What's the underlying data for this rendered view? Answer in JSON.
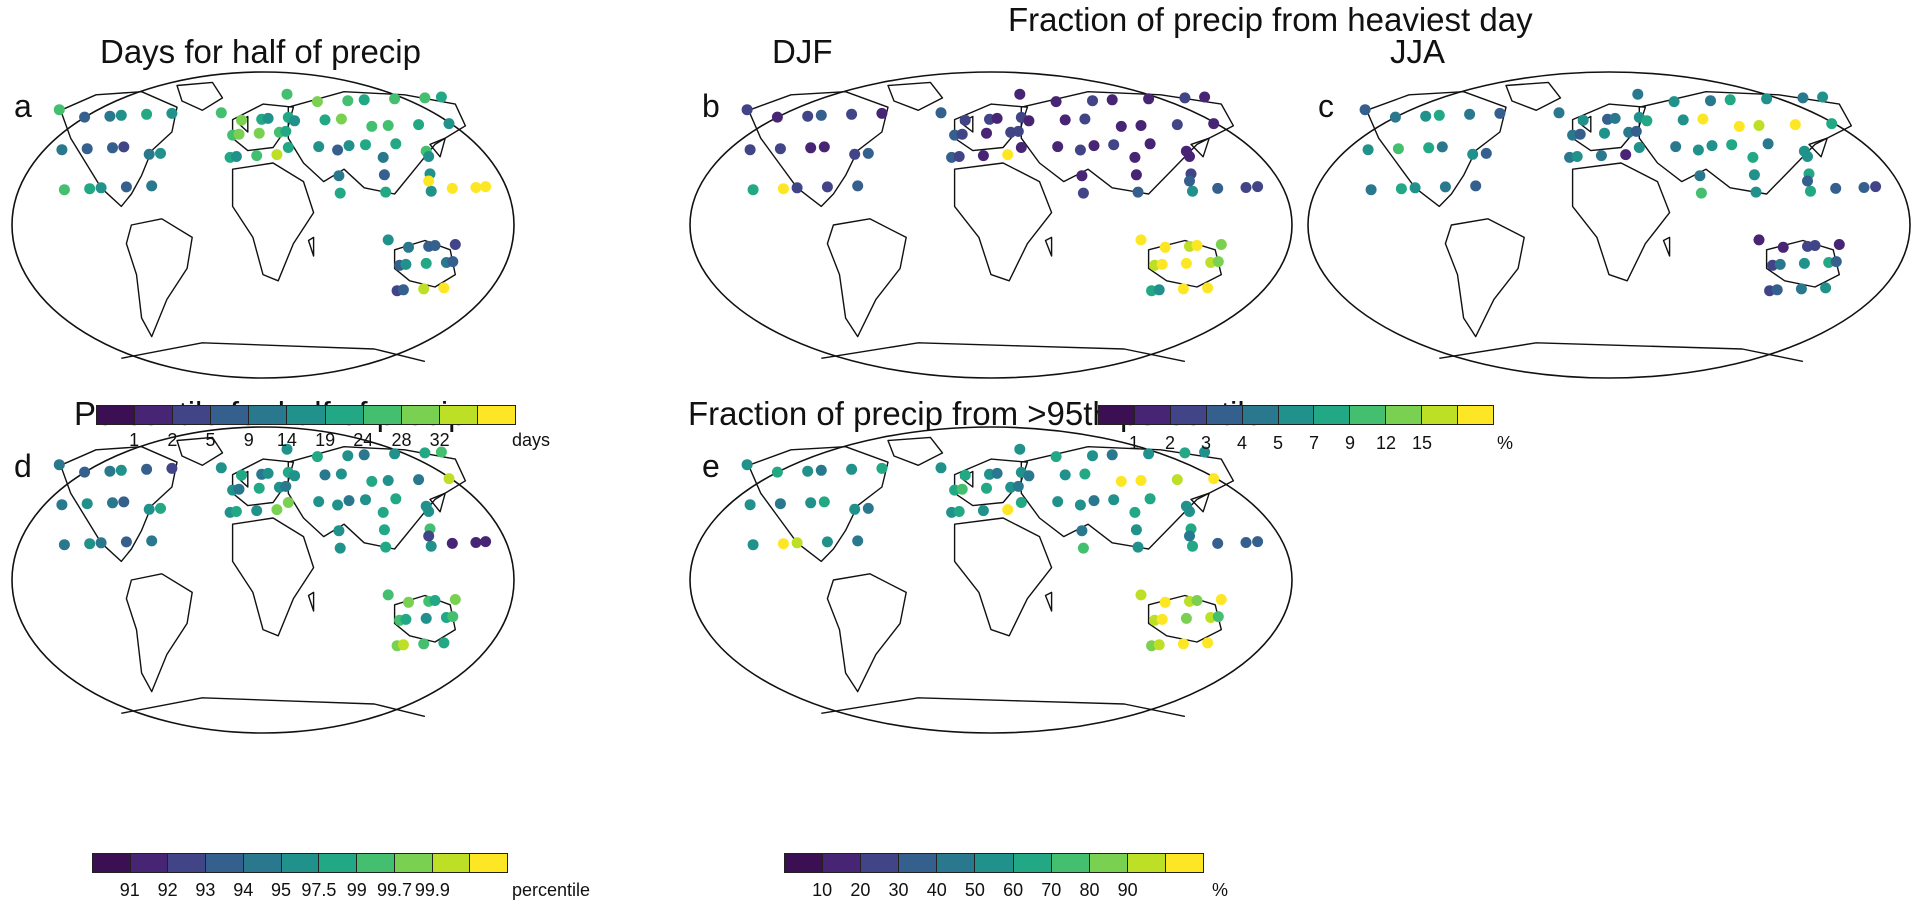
{
  "header": {
    "title": "Fraction of precip from heaviest day"
  },
  "palette": [
    "#3b0f52",
    "#482475",
    "#414487",
    "#355f8d",
    "#2a788e",
    "#21918c",
    "#22a884",
    "#44bf70",
    "#7ad151",
    "#bddf26",
    "#fde725"
  ],
  "panels": {
    "a": {
      "label": "a",
      "title": "Days for half of precip",
      "colorbar": {
        "ticks": [
          "1",
          "2",
          "5",
          "9",
          "14",
          "19",
          "24",
          "28",
          "32"
        ],
        "unit": "days"
      }
    },
    "b": {
      "label": "b",
      "title": "DJF",
      "colorbar": {
        "ticks": [
          "1",
          "2",
          "3",
          "4",
          "5",
          "7",
          "9",
          "12",
          "15"
        ],
        "unit": "%"
      }
    },
    "c": {
      "label": "c",
      "title": "JJA"
    },
    "d": {
      "label": "d",
      "title": "Percentile for half of precip",
      "colorbar": {
        "ticks": [
          "91",
          "92",
          "93",
          "94",
          "95",
          "97.5",
          "99",
          "99.7",
          "99.9"
        ],
        "unit": "percentile"
      }
    },
    "e": {
      "label": "e",
      "title": "Fraction of precip from >95th percentile",
      "colorbar": {
        "ticks": [
          "10",
          "20",
          "30",
          "40",
          "50",
          "60",
          "70",
          "80",
          "90"
        ],
        "unit": "%"
      }
    }
  },
  "stations": {
    "a": {
      "us": [
        7,
        3,
        4,
        5,
        6,
        5,
        4,
        3,
        3,
        2,
        4,
        5,
        7,
        6,
        5,
        3,
        4
      ],
      "eu": [
        7,
        8,
        6,
        5,
        6,
        7,
        8,
        8,
        7,
        6,
        6,
        5,
        7,
        9
      ],
      "ru": [
        7,
        8,
        7,
        6,
        7,
        7,
        6,
        5,
        6,
        8,
        7,
        7,
        6,
        5,
        6,
        5,
        5,
        6,
        6,
        7
      ],
      "as": [
        3,
        4,
        5,
        4,
        3,
        5,
        6,
        6,
        5
      ],
      "pac": [
        10,
        10,
        10,
        10
      ],
      "au": [
        5,
        4,
        3,
        3,
        2,
        3,
        5,
        6,
        4,
        3,
        2,
        3,
        9,
        10
      ]
    },
    "b": {
      "us": [
        2,
        1,
        2,
        3,
        2,
        1,
        2,
        2,
        1,
        1,
        2,
        3,
        6,
        10,
        2,
        2,
        3
      ],
      "eu": [
        3,
        2,
        2,
        1,
        2,
        3,
        2,
        1,
        2,
        2,
        3,
        2,
        1,
        10
      ],
      "ru": [
        1,
        1,
        2,
        1,
        1,
        2,
        1,
        1,
        1,
        2,
        1,
        1,
        2,
        1,
        1,
        1,
        1,
        2,
        1,
        1
      ],
      "as": [
        2,
        1,
        1,
        1,
        1,
        2,
        2,
        3,
        5
      ],
      "pac": [
        3,
        3,
        2,
        2
      ],
      "au": [
        10,
        10,
        9,
        10,
        8,
        9,
        10,
        10,
        9,
        8,
        6,
        5,
        10,
        10
      ]
    },
    "c": {
      "us": [
        3,
        4,
        5,
        6,
        4,
        3,
        5,
        7,
        6,
        4,
        5,
        3,
        4,
        6,
        5,
        4,
        3
      ],
      "eu": [
        4,
        5,
        3,
        4,
        5,
        4,
        3,
        5,
        4,
        3,
        4,
        5,
        4,
        1
      ],
      "ru": [
        4,
        5,
        4,
        6,
        5,
        4,
        5,
        6,
        5,
        10,
        10,
        9,
        10,
        6,
        5,
        4,
        5,
        6,
        4,
        5
      ],
      "as": [
        5,
        6,
        5,
        4,
        5,
        6,
        7,
        5,
        6
      ],
      "pac": [
        3,
        3,
        3,
        2
      ],
      "au": [
        1,
        1,
        2,
        2,
        1,
        2,
        4,
        5,
        6,
        3,
        2,
        3,
        4,
        5
      ]
    },
    "d": {
      "us": [
        4,
        3,
        4,
        5,
        3,
        2,
        4,
        5,
        4,
        3,
        5,
        6,
        4,
        5,
        4,
        3,
        4
      ],
      "eu": [
        5,
        6,
        4,
        5,
        6,
        5,
        4,
        6,
        5,
        4,
        5,
        6,
        5,
        8
      ],
      "ru": [
        5,
        6,
        5,
        4,
        5,
        6,
        7,
        5,
        4,
        5,
        6,
        5,
        4,
        9,
        8,
        5,
        4,
        5,
        6,
        5
      ],
      "as": [
        5,
        6,
        5,
        5,
        6,
        7,
        5,
        6,
        5
      ],
      "pac": [
        2,
        1,
        1,
        1
      ],
      "au": [
        7,
        8,
        7,
        6,
        8,
        7,
        6,
        5,
        6,
        7,
        8,
        9,
        7,
        6
      ]
    },
    "e": {
      "us": [
        5,
        6,
        5,
        4,
        5,
        6,
        5,
        4,
        5,
        6,
        5,
        4,
        5,
        10,
        9,
        5,
        4
      ],
      "eu": [
        5,
        6,
        5,
        4,
        5,
        6,
        7,
        6,
        5,
        4,
        5,
        6,
        5,
        10
      ],
      "ru": [
        5,
        6,
        5,
        4,
        5,
        6,
        5,
        4,
        5,
        6,
        10,
        10,
        9,
        10,
        6,
        5,
        4,
        5,
        6,
        5
      ],
      "as": [
        5,
        6,
        5,
        4,
        5,
        6,
        7,
        5,
        6
      ],
      "pac": [
        4,
        3,
        3,
        3
      ],
      "au": [
        9,
        10,
        9,
        8,
        10,
        9,
        10,
        8,
        9,
        7,
        8,
        9,
        10,
        10
      ]
    }
  }
}
